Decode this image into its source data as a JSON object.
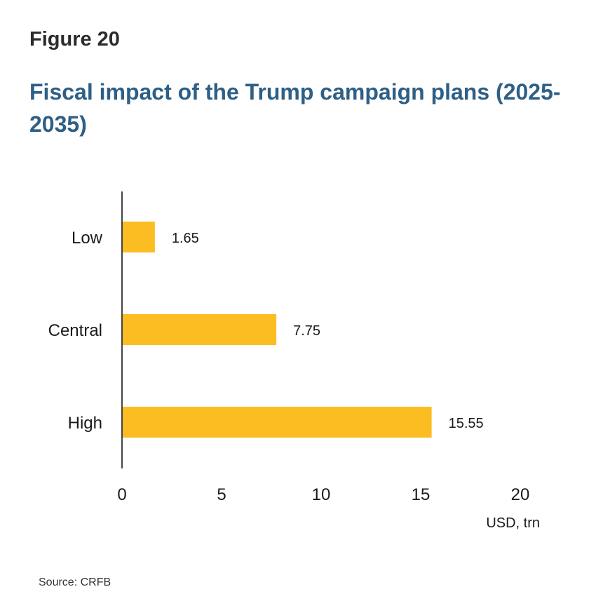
{
  "figure_label": "Figure 20",
  "source": "Source: CRFB",
  "colors": {
    "bar": "#fbbd22",
    "title": "#2e5f86",
    "axis": "#444444"
  },
  "chart_data": {
    "type": "bar",
    "orientation": "horizontal",
    "title": "Fiscal impact of the Trump campaign plans (2025-2035)",
    "categories": [
      "Low",
      "Central",
      "High"
    ],
    "values": [
      1.65,
      7.75,
      15.55
    ],
    "value_labels": [
      "1.65",
      "7.75",
      "15.55"
    ],
    "xlabel": "USD, trn",
    "ylabel": "",
    "xlim": [
      0,
      20
    ],
    "xticks": [
      0,
      5,
      10,
      15,
      20
    ],
    "grid": false,
    "legend": "none"
  }
}
